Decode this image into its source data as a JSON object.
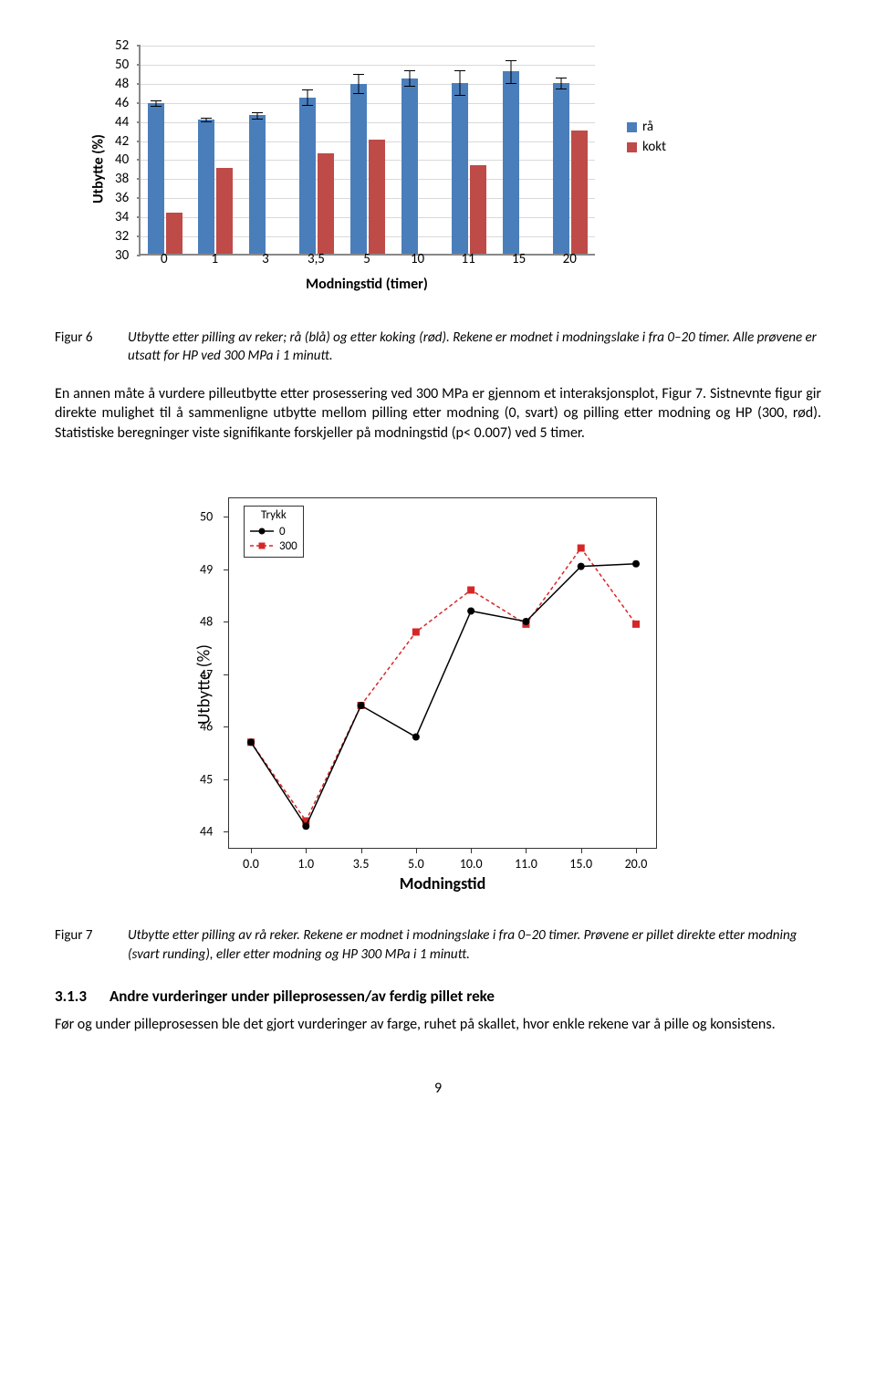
{
  "barChart": {
    "yaxis_label": "Utbytte (%)",
    "xaxis_label": "Modningstid (timer)",
    "ymin": 30,
    "ymax": 52,
    "ystep": 2,
    "categories": [
      "0",
      "1",
      "3",
      "3,5",
      "5",
      "10",
      "11",
      "15",
      "20"
    ],
    "series_blue": {
      "label": "rå",
      "color": "#4a7ebb",
      "values": [
        45.8,
        44.1,
        44.5,
        46.4,
        47.8,
        48.4,
        47.9,
        49.1,
        47.9
      ],
      "errors": [
        0.3,
        0.2,
        0.3,
        0.8,
        1.0,
        0.8,
        1.3,
        1.2,
        0.6
      ]
    },
    "series_red": {
      "label": "kokt",
      "color": "#be4b48",
      "values": [
        34.3,
        39.0,
        null,
        40.5,
        42.0,
        null,
        39.3,
        null,
        42.9
      ],
      "errors": [
        null,
        null,
        null,
        null,
        null,
        null,
        null,
        null,
        null
      ]
    },
    "gridline_color": "#d9d9d9",
    "axis_color": "#888888"
  },
  "caption1": {
    "label": "Figur 6",
    "text": "Utbytte etter pilling av reker; rå (blå) og etter koking (rød). Rekene er modnet i modningslake i fra 0–20 timer. Alle prøvene er utsatt for HP ved 300 MPa i 1 minutt."
  },
  "para1": "En annen måte å vurdere pilleutbytte etter prosessering ved 300 MPa er gjennom et interaksjonsplot, Figur 7. Sistnevnte figur gir direkte mulighet til å sammenligne utbytte mellom pilling etter modning (0, svart) og pilling etter modning og HP (300, rød). Statistiske beregninger viste signifikante forskjeller på modningstid (p< 0.007) ved 5 timer.",
  "lineChart": {
    "yaxis_label": "Utbytte (%)",
    "xaxis_label": "Modningstid",
    "ymin": 44,
    "ymax": 50,
    "ystep": 1,
    "xticks": [
      "0.0",
      "1.0",
      "3.5",
      "5.0",
      "10.0",
      "11.0",
      "15.0",
      "20.0"
    ],
    "legend_title": "Trykk",
    "series0": {
      "label": "0",
      "color": "#000000",
      "dash": "",
      "marker": "circle",
      "y": [
        45.7,
        44.1,
        46.4,
        45.8,
        48.2,
        48.0,
        49.05,
        49.1
      ]
    },
    "series300": {
      "label": "300",
      "color": "#d62728",
      "dash": "4,3",
      "marker": "square",
      "y": [
        45.7,
        44.2,
        46.4,
        47.8,
        48.6,
        47.95,
        49.4,
        47.95
      ]
    }
  },
  "caption2": {
    "label": "Figur 7",
    "text": "Utbytte etter pilling av rå reker. Rekene er modnet i modningslake i fra 0–20 timer. Prøvene er pillet direkte etter modning (svart runding), eller etter modning og HP 300 MPa i 1 minutt."
  },
  "section": {
    "number": "3.1.3",
    "title": "Andre vurderinger under pilleprosessen/av ferdig pillet reke"
  },
  "para2": "Før og under pilleprosessen ble det gjort vurderinger av farge, ruhet på skallet, hvor enkle rekene var å pille og konsistens.",
  "page": "9"
}
